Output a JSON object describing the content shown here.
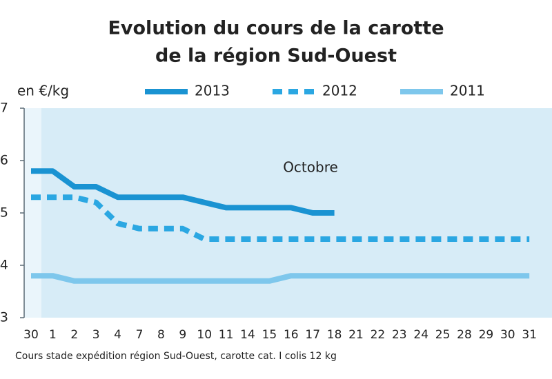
{
  "chart_data": {
    "type": "line",
    "title": "Evolution du cours de la carotte",
    "subtitle": "de la région Sud-Ouest",
    "y_label": "en €/kg",
    "annotation": "Octobre",
    "note": "Cours stade expédition région Sud-Ouest, carotte cat. I colis 12 kg",
    "categories": [
      "30",
      "1",
      "2",
      "3",
      "4",
      "7",
      "8",
      "9",
      "10",
      "11",
      "14",
      "15",
      "16",
      "17",
      "18",
      "21",
      "22",
      "23",
      "24",
      "25",
      "28",
      "29",
      "30",
      "31"
    ],
    "series": [
      {
        "name": "2013",
        "color": "#1a93d2",
        "style": "solid",
        "values": [
          5.8,
          5.8,
          5.5,
          5.5,
          5.3,
          5.3,
          5.3,
          5.3,
          5.2,
          5.1,
          5.1,
          5.1,
          5.1,
          5.0,
          5.0,
          null,
          null,
          null,
          null,
          null,
          null,
          null,
          null,
          null
        ]
      },
      {
        "name": "2012",
        "color": "#2ba7e2",
        "style": "dashed",
        "values": [
          5.3,
          5.3,
          5.3,
          5.2,
          4.8,
          4.7,
          4.7,
          4.7,
          4.5,
          4.5,
          4.5,
          4.5,
          4.5,
          4.5,
          4.5,
          4.5,
          4.5,
          4.5,
          4.5,
          4.5,
          4.5,
          4.5,
          4.5,
          4.5
        ]
      },
      {
        "name": "2011",
        "color": "#7ec7ec",
        "style": "solid",
        "values": [
          3.8,
          3.8,
          3.7,
          3.7,
          3.7,
          3.7,
          3.7,
          3.7,
          3.7,
          3.7,
          3.7,
          3.7,
          3.8,
          3.8,
          3.8,
          3.8,
          3.8,
          3.8,
          3.8,
          3.8,
          3.8,
          3.8,
          3.8,
          3.8
        ]
      }
    ],
    "ylim": [
      3,
      7
    ],
    "yticks": [
      3,
      4,
      5,
      6,
      7
    ]
  }
}
